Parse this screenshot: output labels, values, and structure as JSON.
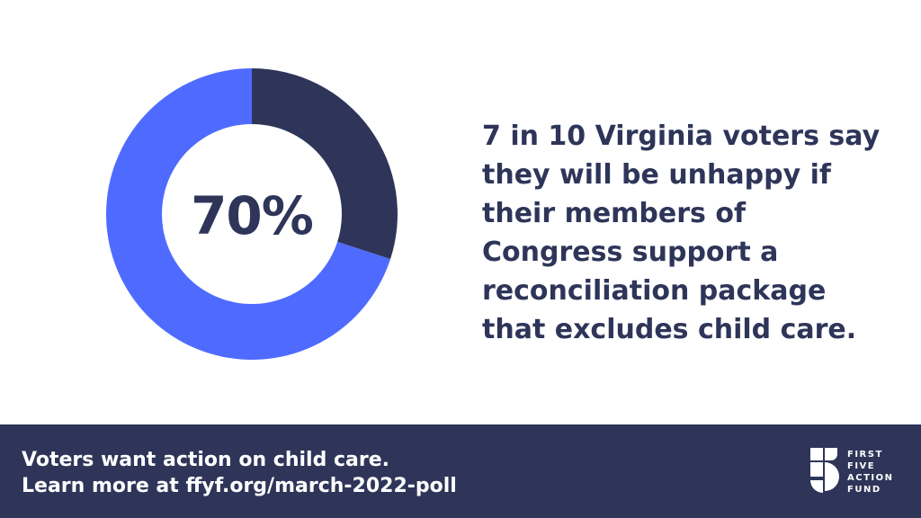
{
  "chart_data": {
    "type": "pie",
    "categories": [
      "",
      ""
    ],
    "values": [
      70,
      30
    ],
    "center_label": "70%",
    "colors": [
      "#4f6bff",
      "#2e3559"
    ]
  },
  "headline": {
    "lines": [
      "7 in 10 Virginia voters say",
      "they will be unhappy if",
      "their members of",
      "Congress support a",
      "reconciliation package",
      "that excludes child care."
    ]
  },
  "footer": {
    "background": "#2e3559",
    "line1": "Voters want action on child care.",
    "line2": "Learn more at ffyf.org/march-2022-poll"
  },
  "logo": {
    "icon": "five-logo-icon",
    "words": [
      "FIRST",
      "FIVE",
      "ACTION",
      "FUND"
    ]
  }
}
